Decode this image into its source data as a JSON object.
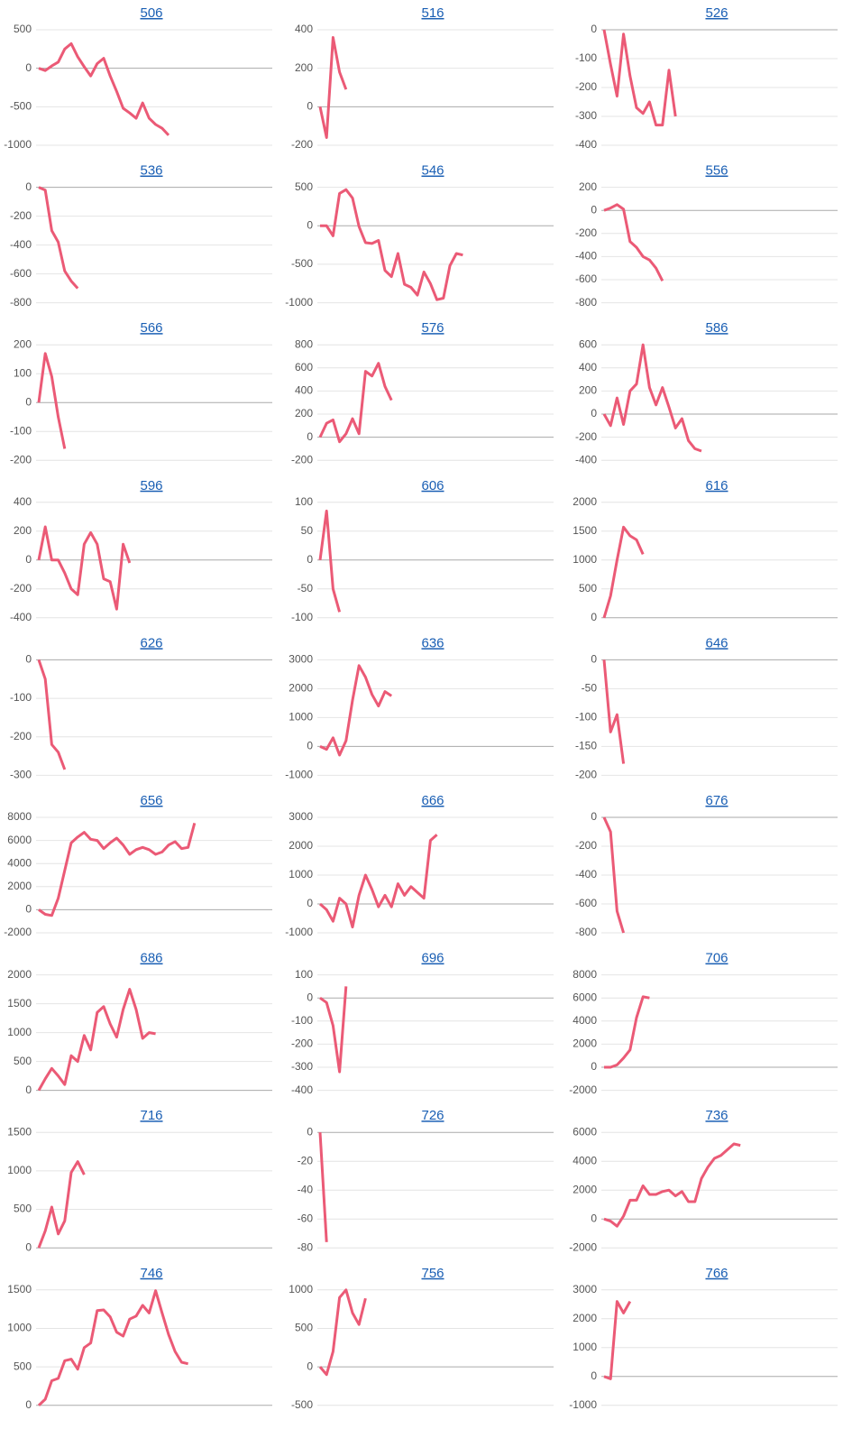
{
  "chart_data": [
    {
      "type": "line",
      "title": "506",
      "color": "#eb5a76",
      "ylim": [
        -1000,
        500
      ],
      "yticks": [
        500,
        0,
        -500,
        -1000
      ],
      "values": [
        0,
        -30,
        30,
        80,
        250,
        320,
        150,
        20,
        -100,
        60,
        130,
        -100,
        -300,
        -520,
        -580,
        -650,
        -450,
        -650,
        -730,
        -780,
        -870
      ]
    },
    {
      "type": "line",
      "title": "516",
      "color": "#eb5a76",
      "ylim": [
        -200,
        400
      ],
      "yticks": [
        400,
        200,
        0,
        -200
      ],
      "values": [
        0,
        -160,
        360,
        180,
        90
      ]
    },
    {
      "type": "line",
      "title": "526",
      "color": "#eb5a76",
      "ylim": [
        -400,
        0
      ],
      "yticks": [
        0,
        -100,
        -200,
        -300,
        -400
      ],
      "values": [
        0,
        -120,
        -230,
        -15,
        -160,
        -270,
        -290,
        -250,
        -330,
        -330,
        -140,
        -300
      ]
    },
    {
      "type": "line",
      "title": "536",
      "color": "#eb5a76",
      "ylim": [
        -800,
        0
      ],
      "yticks": [
        0,
        -200,
        -400,
        -600,
        -800
      ],
      "values": [
        0,
        -20,
        -300,
        -380,
        -580,
        -650,
        -700
      ]
    },
    {
      "type": "line",
      "title": "546",
      "color": "#eb5a76",
      "ylim": [
        -1000,
        500
      ],
      "yticks": [
        500,
        0,
        -500,
        -1000
      ],
      "values": [
        0,
        0,
        -130,
        420,
        470,
        360,
        -10,
        -220,
        -230,
        -190,
        -580,
        -660,
        -360,
        -760,
        -800,
        -900,
        -600,
        -750,
        -960,
        -940,
        -520,
        -360,
        -380
      ]
    },
    {
      "type": "line",
      "title": "556",
      "color": "#eb5a76",
      "ylim": [
        -800,
        200
      ],
      "yticks": [
        200,
        0,
        -200,
        -400,
        -600,
        -800
      ],
      "values": [
        0,
        20,
        50,
        10,
        -270,
        -320,
        -400,
        -430,
        -500,
        -610
      ]
    },
    {
      "type": "line",
      "title": "566",
      "color": "#eb5a76",
      "ylim": [
        -200,
        200
      ],
      "yticks": [
        200,
        100,
        0,
        -100,
        -200
      ],
      "values": [
        0,
        170,
        90,
        -50,
        -160
      ]
    },
    {
      "type": "line",
      "title": "576",
      "color": "#eb5a76",
      "ylim": [
        -200,
        800
      ],
      "yticks": [
        800,
        600,
        400,
        200,
        0,
        -200
      ],
      "values": [
        0,
        120,
        150,
        -40,
        30,
        160,
        30,
        570,
        530,
        640,
        440,
        320
      ]
    },
    {
      "type": "line",
      "title": "586",
      "color": "#eb5a76",
      "ylim": [
        -400,
        600
      ],
      "yticks": [
        600,
        400,
        200,
        0,
        -200,
        -400
      ],
      "values": [
        0,
        -100,
        140,
        -90,
        200,
        260,
        600,
        230,
        80,
        230,
        60,
        -120,
        -40,
        -230,
        -300,
        -320
      ]
    },
    {
      "type": "line",
      "title": "596",
      "color": "#eb5a76",
      "ylim": [
        -400,
        400
      ],
      "yticks": [
        400,
        200,
        0,
        -200,
        -400
      ],
      "values": [
        0,
        230,
        0,
        0,
        -90,
        -200,
        -240,
        110,
        190,
        110,
        -130,
        -150,
        -340,
        110,
        -20
      ]
    },
    {
      "type": "line",
      "title": "606",
      "color": "#eb5a76",
      "ylim": [
        -100,
        100
      ],
      "yticks": [
        100,
        50,
        0,
        -50,
        -100
      ],
      "values": [
        0,
        85,
        -50,
        -90
      ]
    },
    {
      "type": "line",
      "title": "616",
      "color": "#eb5a76",
      "ylim": [
        0,
        2000
      ],
      "yticks": [
        2000,
        1500,
        1000,
        500,
        0
      ],
      "values": [
        0,
        380,
        1000,
        1570,
        1420,
        1350,
        1100
      ]
    },
    {
      "type": "line",
      "title": "626",
      "color": "#eb5a76",
      "ylim": [
        -300,
        0
      ],
      "yticks": [
        0,
        -100,
        -200,
        -300
      ],
      "values": [
        0,
        -50,
        -220,
        -240,
        -285
      ]
    },
    {
      "type": "line",
      "title": "636",
      "color": "#eb5a76",
      "ylim": [
        -1000,
        3000
      ],
      "yticks": [
        3000,
        2000,
        1000,
        0,
        -1000
      ],
      "values": [
        0,
        -100,
        300,
        -300,
        200,
        1600,
        2800,
        2400,
        1800,
        1400,
        1900,
        1750
      ]
    },
    {
      "type": "line",
      "title": "646",
      "color": "#eb5a76",
      "ylim": [
        -200,
        0
      ],
      "yticks": [
        0,
        -50,
        -100,
        -150,
        -200
      ],
      "values": [
        0,
        -125,
        -95,
        -180
      ]
    },
    {
      "type": "line",
      "title": "656",
      "color": "#eb5a76",
      "ylim": [
        -2000,
        8000
      ],
      "yticks": [
        8000,
        6000,
        4000,
        2000,
        0,
        -2000
      ],
      "values": [
        0,
        -400,
        -500,
        1000,
        3400,
        5800,
        6300,
        6700,
        6100,
        6000,
        5300,
        5800,
        6200,
        5600,
        4800,
        5200,
        5400,
        5200,
        4800,
        5000,
        5600,
        5900,
        5300,
        5400,
        7500
      ]
    },
    {
      "type": "line",
      "title": "666",
      "color": "#eb5a76",
      "ylim": [
        -1000,
        3000
      ],
      "yticks": [
        3000,
        2000,
        1000,
        0,
        -1000
      ],
      "values": [
        0,
        -200,
        -600,
        200,
        0,
        -800,
        300,
        1000,
        500,
        -100,
        300,
        -100,
        700,
        300,
        600,
        400,
        200,
        2200,
        2400
      ]
    },
    {
      "type": "line",
      "title": "676",
      "color": "#eb5a76",
      "ylim": [
        -800,
        0
      ],
      "yticks": [
        0,
        -200,
        -400,
        -600,
        -800
      ],
      "values": [
        0,
        -100,
        -650,
        -800
      ]
    },
    {
      "type": "line",
      "title": "686",
      "color": "#eb5a76",
      "ylim": [
        0,
        2000
      ],
      "yticks": [
        2000,
        1500,
        1000,
        500,
        0
      ],
      "values": [
        0,
        200,
        380,
        250,
        100,
        600,
        500,
        950,
        700,
        1350,
        1450,
        1150,
        920,
        1400,
        1750,
        1400,
        900,
        1000,
        980
      ]
    },
    {
      "type": "line",
      "title": "696",
      "color": "#eb5a76",
      "ylim": [
        -400,
        100
      ],
      "yticks": [
        100,
        0,
        -100,
        -200,
        -300,
        -400
      ],
      "values": [
        0,
        -20,
        -120,
        -320,
        50
      ]
    },
    {
      "type": "line",
      "title": "706",
      "color": "#eb5a76",
      "ylim": [
        -2000,
        8000
      ],
      "yticks": [
        8000,
        6000,
        4000,
        2000,
        0,
        -2000
      ],
      "values": [
        0,
        0,
        200,
        800,
        1500,
        4300,
        6100,
        6000
      ]
    },
    {
      "type": "line",
      "title": "716",
      "color": "#eb5a76",
      "ylim": [
        0,
        1500
      ],
      "yticks": [
        1500,
        1000,
        500,
        0
      ],
      "values": [
        0,
        220,
        530,
        180,
        350,
        980,
        1120,
        950
      ]
    },
    {
      "type": "line",
      "title": "726",
      "color": "#eb5a76",
      "ylim": [
        -80,
        0
      ],
      "yticks": [
        0,
        -20,
        -40,
        -60,
        -80
      ],
      "values": [
        0,
        -76
      ]
    },
    {
      "type": "line",
      "title": "736",
      "color": "#eb5a76",
      "ylim": [
        -2000,
        6000
      ],
      "yticks": [
        6000,
        4000,
        2000,
        0,
        -2000
      ],
      "values": [
        0,
        -150,
        -500,
        200,
        1300,
        1300,
        2300,
        1700,
        1700,
        1900,
        2000,
        1600,
        1900,
        1200,
        1200,
        2800,
        3600,
        4200,
        4400,
        4800,
        5200,
        5100
      ]
    },
    {
      "type": "line",
      "title": "746",
      "color": "#eb5a76",
      "ylim": [
        0,
        1500
      ],
      "yticks": [
        1500,
        1000,
        500,
        0
      ],
      "values": [
        0,
        80,
        320,
        350,
        580,
        600,
        470,
        750,
        810,
        1230,
        1240,
        1150,
        950,
        900,
        1120,
        1160,
        1300,
        1200,
        1490,
        1200,
        920,
        700,
        560,
        540
      ]
    },
    {
      "type": "line",
      "title": "756",
      "color": "#eb5a76",
      "ylim": [
        -500,
        1000
      ],
      "yticks": [
        1000,
        500,
        0,
        -500
      ],
      "values": [
        0,
        -100,
        200,
        900,
        1000,
        700,
        550,
        890
      ]
    },
    {
      "type": "line",
      "title": "766",
      "color": "#eb5a76",
      "ylim": [
        -1000,
        3000
      ],
      "yticks": [
        3000,
        2000,
        1000,
        0,
        -1000
      ],
      "values": [
        0,
        -80,
        2600,
        2200,
        2600
      ]
    }
  ]
}
